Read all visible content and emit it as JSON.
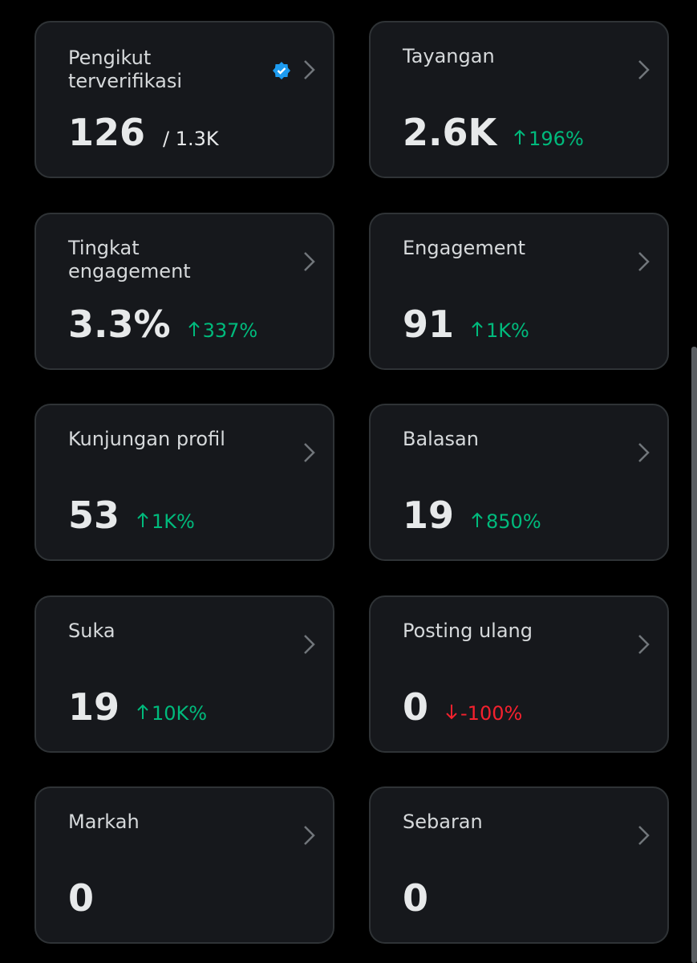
{
  "cards": [
    {
      "label": "Pengikut terverifikasi",
      "value": "126",
      "secondary": "/ 1.3K",
      "verified": true
    },
    {
      "label": "Tayangan",
      "value": "2.6K",
      "change": "196%",
      "trend": "up"
    },
    {
      "label": "Tingkat engagement",
      "value": "3.3%",
      "change": "337%",
      "trend": "up"
    },
    {
      "label": "Engagement",
      "value": "91",
      "change": "1K%",
      "trend": "up"
    },
    {
      "label": "Kunjungan profil",
      "value": "53",
      "change": "1K%",
      "trend": "up"
    },
    {
      "label": "Balasan",
      "value": "19",
      "change": "850%",
      "trend": "up"
    },
    {
      "label": "Suka",
      "value": "19",
      "change": "10K%",
      "trend": "up"
    },
    {
      "label": "Posting ulang",
      "value": "0",
      "change": "-100%",
      "trend": "down"
    },
    {
      "label": "Markah",
      "value": "0"
    },
    {
      "label": "Sebaran",
      "value": "0"
    }
  ]
}
